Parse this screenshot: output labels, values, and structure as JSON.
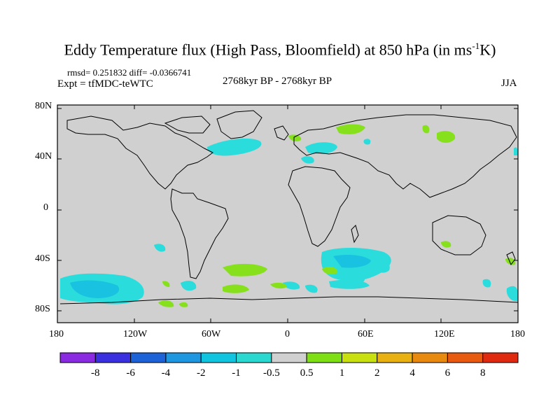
{
  "title": {
    "main": "Eddy Temperature flux (High Pass, Bloomfield) at 850 hPa (in ms",
    "sup": "-1",
    "end": "K)"
  },
  "stats": {
    "text": "rmsd= 0.251832  diff= -0.0366741"
  },
  "experiment": {
    "text": "Expt = tfMDC-teWTC"
  },
  "period": {
    "text": "2768kyr BP - 2768kyr BP"
  },
  "season": {
    "text": "JJA"
  },
  "axes": {
    "lat_ticks": [
      "80N",
      "40N",
      "0",
      "40S",
      "80S"
    ],
    "lon_ticks": [
      "180",
      "120W",
      "60W",
      "0",
      "60E",
      "120E",
      "180"
    ]
  },
  "legend": {
    "labels": [
      "-8",
      "-6",
      "-4",
      "-2",
      "-1",
      "-0.5",
      "0.5",
      "1",
      "2",
      "4",
      "6",
      "8"
    ],
    "colors": [
      "#8a2be2",
      "#3a30e0",
      "#1e62d8",
      "#1e96e0",
      "#10c3df",
      "#2bd8d0",
      "#d0d0d0",
      "#7ee014",
      "#c8e010",
      "#e8b010",
      "#e88a10",
      "#e85a10",
      "#e02a10"
    ]
  },
  "colors": {
    "background": "#d0d0d0",
    "positive_low": "#86e01c",
    "negative_low": "#2bdcdc",
    "negative_mid": "#19c2e0",
    "coast": "#000000"
  }
}
